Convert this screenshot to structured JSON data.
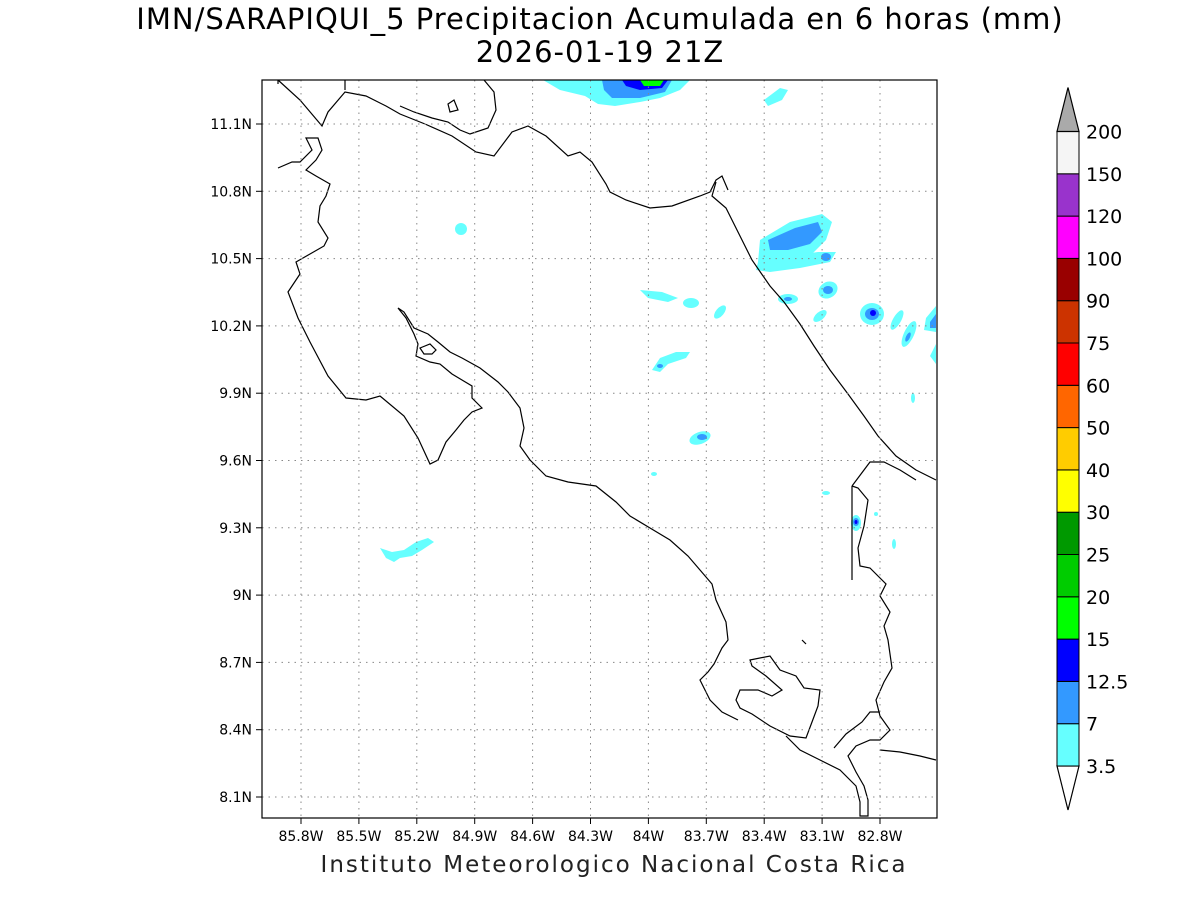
{
  "title": {
    "line1": "IMN/SARAPIQUI_5 Precipitacion Acumulada en 6 horas (mm)",
    "line2": "2026-01-19 21Z"
  },
  "footer": "Instituto Meteorologico Nacional Costa Rica",
  "map": {
    "lon_range": [
      -86.0,
      -83.0
    ],
    "lat_range": [
      8.0,
      11.2
    ],
    "x_ticks": [
      "85.8W",
      "85.5W",
      "85.2W",
      "84.9W",
      "84.6W",
      "84.3W",
      "84W",
      "83.7W",
      "83.4W",
      "83.1W",
      "82.8W"
    ],
    "y_ticks": [
      "11.1N",
      "10.8N",
      "10.5N",
      "10.2N",
      "9.9N",
      "9.6N",
      "9.3N",
      "9N",
      "8.7N",
      "8.4N",
      "8.1N"
    ],
    "grid": "dotted"
  },
  "colorbar": {
    "levels": [
      "3.5",
      "7",
      "12.5",
      "15",
      "20",
      "25",
      "30",
      "40",
      "50",
      "60",
      "75",
      "90",
      "100",
      "120",
      "150",
      "200"
    ],
    "colors": [
      "#66ffff",
      "#3399ff",
      "#0000ff",
      "#00ff00",
      "#00cc00",
      "#009900",
      "#ffff00",
      "#ffcc00",
      "#ff6600",
      "#ff0000",
      "#cc3300",
      "#990000",
      "#ff00ff",
      "#9933cc",
      "#f5f5f5",
      "#aaaaaa"
    ],
    "under_color": "#ffffff",
    "over_color": "#aaaaaa"
  }
}
